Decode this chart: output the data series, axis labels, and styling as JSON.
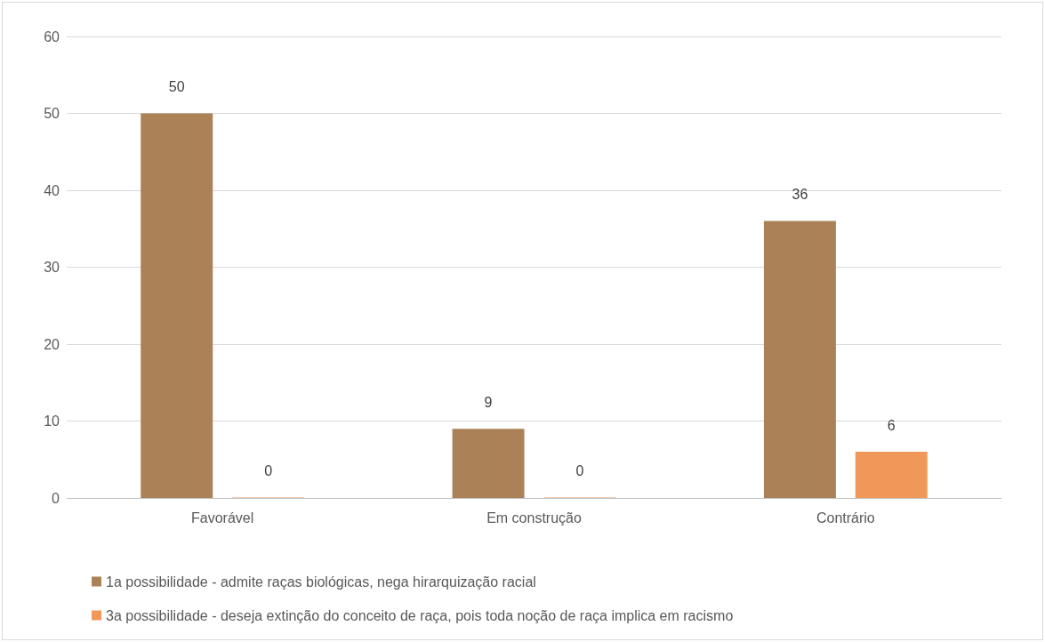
{
  "chart_data": {
    "type": "bar",
    "categories": [
      "Favorável",
      "Em construção",
      "Contrário"
    ],
    "series": [
      {
        "name": "1a possibilidade - admite raças biológicas, nega hirarquização racial",
        "color": "#ab8257",
        "values": [
          50,
          9,
          36
        ]
      },
      {
        "name": "3a possibilidade - deseja extinção do conceito de raça, pois toda noção de raça implica em racismo",
        "color": "#f0985a",
        "values": [
          0,
          0,
          6
        ]
      }
    ],
    "ylim": [
      0,
      60
    ],
    "yticks": [
      0,
      10,
      20,
      30,
      40,
      50,
      60
    ],
    "grid": "y",
    "legend": "bottom",
    "data_labels": true
  }
}
